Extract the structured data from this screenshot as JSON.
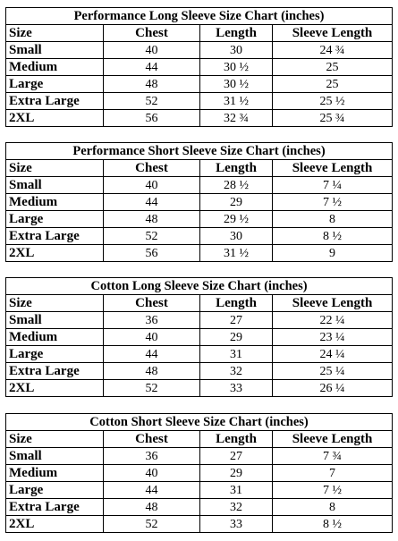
{
  "headers": {
    "size": "Size",
    "chest": "Chest",
    "length": "Length",
    "sleeve": "Sleeve Length"
  },
  "tables": [
    {
      "title": "Performance Long Sleeve Size Chart (inches)",
      "rows": [
        {
          "size": "Small",
          "chest": "40",
          "length": "30",
          "sleeve": "24 ¾"
        },
        {
          "size": "Medium",
          "chest": "44",
          "length": "30 ½",
          "sleeve": "25"
        },
        {
          "size": "Large",
          "chest": "48",
          "length": "30 ½",
          "sleeve": "25"
        },
        {
          "size": "Extra Large",
          "chest": "52",
          "length": "31 ½",
          "sleeve": "25 ½"
        },
        {
          "size": "2XL",
          "chest": "56",
          "length": "32 ¾",
          "sleeve": "25 ¾"
        }
      ]
    },
    {
      "title": "Performance Short Sleeve Size Chart (inches)",
      "rows": [
        {
          "size": "Small",
          "chest": "40",
          "length": "28 ½",
          "sleeve": "7 ¼"
        },
        {
          "size": "Medium",
          "chest": "44",
          "length": "29",
          "sleeve": "7 ½"
        },
        {
          "size": "Large",
          "chest": "48",
          "length": "29 ½",
          "sleeve": "8"
        },
        {
          "size": "Extra Large",
          "chest": "52",
          "length": "30",
          "sleeve": "8 ½"
        },
        {
          "size": "2XL",
          "chest": "56",
          "length": "31 ½",
          "sleeve": "9"
        }
      ]
    },
    {
      "title": "Cotton Long Sleeve Size Chart (inches)",
      "rows": [
        {
          "size": "Small",
          "chest": "36",
          "length": "27",
          "sleeve": "22 ¼"
        },
        {
          "size": "Medium",
          "chest": "40",
          "length": "29",
          "sleeve": "23 ¼"
        },
        {
          "size": "Large",
          "chest": "44",
          "length": "31",
          "sleeve": "24 ¼"
        },
        {
          "size": "Extra Large",
          "chest": "48",
          "length": "32",
          "sleeve": "25 ¼"
        },
        {
          "size": "2XL",
          "chest": "52",
          "length": "33",
          "sleeve": "26 ¼"
        }
      ]
    },
    {
      "title": "Cotton Short Sleeve Size Chart (inches)",
      "rows": [
        {
          "size": "Small",
          "chest": "36",
          "length": "27",
          "sleeve": "7 ¾"
        },
        {
          "size": "Medium",
          "chest": "40",
          "length": "29",
          "sleeve": "7"
        },
        {
          "size": "Large",
          "chest": "44",
          "length": "31",
          "sleeve": "7 ½"
        },
        {
          "size": "Extra Large",
          "chest": "48",
          "length": "32",
          "sleeve": "8"
        },
        {
          "size": "2XL",
          "chest": "52",
          "length": "33",
          "sleeve": "8 ½"
        }
      ]
    }
  ]
}
